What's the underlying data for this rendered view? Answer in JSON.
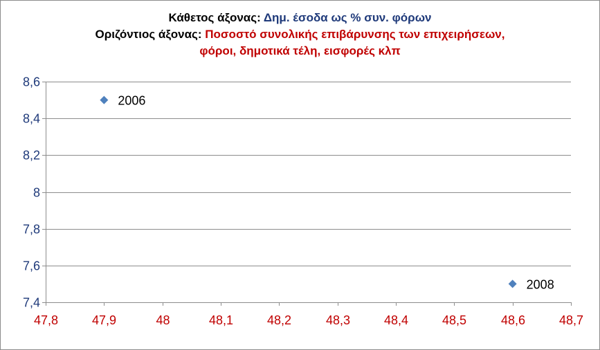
{
  "title": {
    "line1_prefix": "Κάθετος άξονας: ",
    "line1_value": "Δημ. έσοδα ως % συν. φόρων",
    "line2_prefix": "Οριζόντιος άξονας: ",
    "line2_value": "Ποσοστό συνολικής επιβάρυνσης των επιχειρήσεων,",
    "line3_value": "φόροι, δημοτικά τέλη, εισφορές κλπ"
  },
  "colors": {
    "title_prefix": "#000000",
    "vertical_axis_label": "#1f3a7a",
    "horizontal_axis_label": "#c00000",
    "y_tick_labels": "#1f3a7a",
    "x_tick_labels": "#c00000",
    "marker": "#4f81bd",
    "gridline": "#8c8c8c"
  },
  "chart_data": {
    "type": "scatter",
    "title": "Κάθετος άξονας: Δημ. έσοδα ως % συν. φόρων / Οριζόντιος άξονας: Ποσοστό συνολικής επιβάρυνσης των επιχειρήσεων, φόροι, δημοτικά τέλη, εισφορές κλπ",
    "xlim": [
      47.8,
      48.7
    ],
    "ylim": [
      7.4,
      8.6
    ],
    "x_ticks": [
      47.8,
      47.9,
      48.0,
      48.1,
      48.2,
      48.3,
      48.4,
      48.5,
      48.6,
      48.7
    ],
    "x_tick_labels": [
      "47,8",
      "47,9",
      "48",
      "48,1",
      "48,2",
      "48,3",
      "48,4",
      "48,5",
      "48,6",
      "48,7"
    ],
    "y_ticks": [
      7.4,
      7.6,
      7.8,
      8.0,
      8.2,
      8.4,
      8.6
    ],
    "y_tick_labels": [
      "7,4",
      "7,6",
      "7,8",
      "8",
      "8,2",
      "8,4",
      "8,6"
    ],
    "grid": "horizontal",
    "marker": "diamond",
    "points": [
      {
        "x": 47.9,
        "y": 8.5,
        "label": "2006"
      },
      {
        "x": 48.6,
        "y": 7.5,
        "label": "2008"
      }
    ]
  }
}
